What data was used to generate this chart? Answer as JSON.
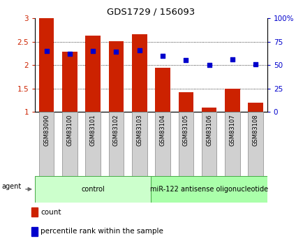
{
  "title": "GDS1729 / 156093",
  "samples": [
    "GSM83090",
    "GSM83100",
    "GSM83101",
    "GSM83102",
    "GSM83103",
    "GSM83104",
    "GSM83105",
    "GSM83106",
    "GSM83107",
    "GSM83108"
  ],
  "bar_values": [
    3.0,
    2.28,
    2.62,
    2.51,
    2.65,
    1.95,
    1.42,
    1.1,
    1.5,
    1.2
  ],
  "scatter_values_pct": [
    65,
    62,
    65,
    64,
    66,
    60,
    55,
    50,
    56,
    51
  ],
  "bar_color": "#cc2200",
  "scatter_color": "#0000cc",
  "ylim_left": [
    1.0,
    3.0
  ],
  "ylim_right": [
    0,
    100
  ],
  "yticks_left": [
    1.0,
    1.5,
    2.0,
    2.5,
    3.0
  ],
  "ytick_labels_left": [
    "1",
    "1.5",
    "2",
    "2.5",
    "3"
  ],
  "yticks_right": [
    0,
    25,
    50,
    75,
    100
  ],
  "ytick_labels_right": [
    "0",
    "25",
    "50",
    "75",
    "100%"
  ],
  "groups": [
    {
      "label": "control",
      "start": 0,
      "end": 5,
      "color": "#ccffcc"
    },
    {
      "label": "miR-122 antisense oligonucleotide",
      "start": 5,
      "end": 10,
      "color": "#aaffaa"
    }
  ],
  "agent_label": "agent",
  "legend_items": [
    {
      "label": "count",
      "color": "#cc2200"
    },
    {
      "label": "percentile rank within the sample",
      "color": "#0000cc"
    }
  ],
  "bar_bottom": 1.0,
  "background_color": "#ffffff",
  "grid_color": "#000000",
  "tick_label_gray": "#d0d0d0"
}
